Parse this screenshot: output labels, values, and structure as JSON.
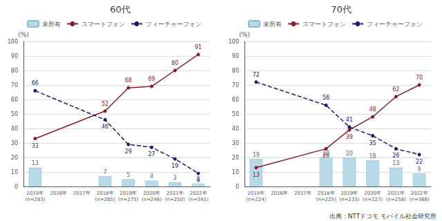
{
  "chart_data": [
    {
      "type": "bar",
      "title": "60代",
      "categories": [
        "2015年\n(n=283)",
        "2016年",
        "2017年",
        "2018年\n(n=285)",
        "2019年\n(n=275)",
        "2020年\n(n=246)",
        "2021年\n(n=250)",
        "2022年\n(n=341)"
      ],
      "series": [
        {
          "name": "未所有",
          "type": "bar",
          "color": "#b8d9e8",
          "values": [
            13,
            null,
            null,
            7,
            5,
            4,
            3,
            2
          ]
        },
        {
          "name": "スマートフォン",
          "type": "line",
          "color": "#8b1a2a",
          "marker": "circle",
          "line_style": "solid",
          "values": [
            33,
            null,
            null,
            52,
            68,
            69,
            80,
            91
          ]
        },
        {
          "name": "フィーチャーフォン",
          "type": "line",
          "color": "#1a1a6e",
          "marker": "circle",
          "line_style": "dashed",
          "values": [
            66,
            null,
            null,
            46,
            29,
            27,
            19,
            9
          ]
        }
      ],
      "ylabel": "(%)",
      "ylim": [
        0,
        100
      ],
      "yticks": [
        0,
        10,
        20,
        30,
        40,
        50,
        60,
        70,
        80,
        90,
        100
      ],
      "grid": true,
      "legend": "upper left",
      "data_labels": true
    },
    {
      "type": "bar",
      "title": "70代",
      "categories": [
        "2015年\n(n=224)",
        "2016年",
        "2017年",
        "2018年\n(n=225)",
        "2019年\n(n=233)",
        "2020年\n(n=227)",
        "2021年\n(n=258)",
        "2022年\n(n=368)"
      ],
      "series": [
        {
          "name": "未所有",
          "type": "bar",
          "color": "#b8d9e8",
          "values": [
            19,
            null,
            null,
            20,
            20,
            18,
            13,
            9
          ]
        },
        {
          "name": "スマートフォン",
          "type": "line",
          "color": "#8b1a2a",
          "marker": "circle",
          "line_style": "solid",
          "values": [
            13,
            null,
            null,
            26,
            39,
            48,
            62,
            70
          ]
        },
        {
          "name": "フィーチャーフォン",
          "type": "line",
          "color": "#1a1a6e",
          "marker": "circle",
          "line_style": "dashed",
          "values": [
            72,
            null,
            null,
            56,
            41,
            35,
            26,
            22
          ]
        }
      ],
      "ylabel": "(%)",
      "ylim": [
        0,
        100
      ],
      "yticks": [
        0,
        10,
        20,
        30,
        40,
        50,
        60,
        70,
        80,
        90,
        100
      ],
      "grid": true,
      "legend": "upper left",
      "data_labels": true,
      "annotations": [
        "出典：NTTドコモ モバイル社会研究所"
      ]
    }
  ]
}
